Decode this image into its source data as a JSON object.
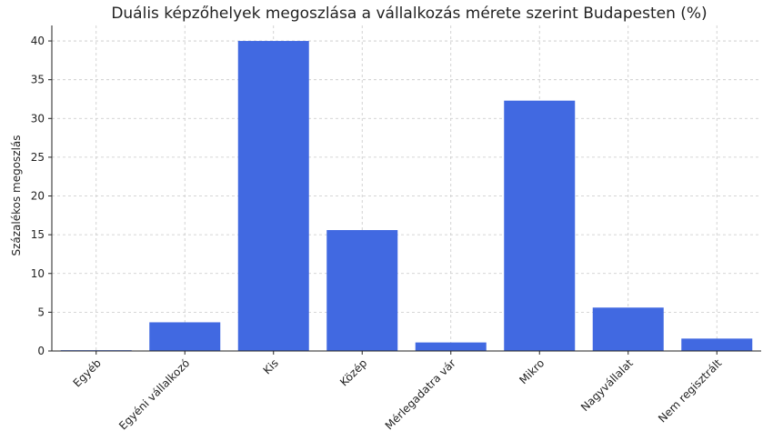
{
  "chart_data": {
    "type": "bar",
    "title": "Duális képzőhelyek megoszlása a vállalkozás mérete szerint Budapesten (%)",
    "xlabel": "",
    "ylabel": "Százalékos megoszlás",
    "categories": [
      "Egyéb",
      "Egyéni vállalkozó",
      "Kis",
      "Közép",
      "Mérlegadatra vár",
      "Mikro",
      "Nagyvállalat",
      "Nem regisztrált"
    ],
    "values": [
      0.1,
      3.7,
      40.0,
      15.6,
      1.1,
      32.3,
      5.6,
      1.6
    ],
    "ylim": [
      0,
      42
    ],
    "yticks": [
      0,
      5,
      10,
      15,
      20,
      25,
      30,
      35,
      40
    ],
    "grid": true,
    "bar_color": "#4169e1"
  }
}
